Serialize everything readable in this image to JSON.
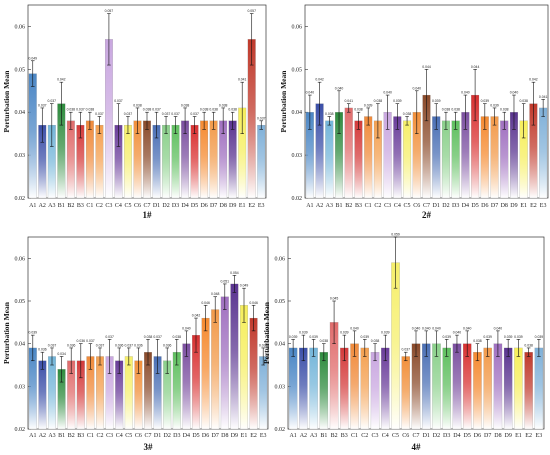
{
  "chart_data": [
    {
      "type": "bar",
      "title": "1#",
      "ylabel": "Perturbation Mean",
      "ylim": [
        0.02,
        0.065
      ],
      "yticks": [
        "0.02",
        "0.03",
        "0.04",
        "0.05",
        "0.06"
      ],
      "categories": [
        "A1",
        "A2",
        "A3",
        "B1",
        "B2",
        "B3",
        "C1",
        "C2",
        "C3",
        "C4",
        "C5",
        "C6",
        "C7",
        "D1",
        "D2",
        "D3",
        "D4",
        "D5",
        "D6",
        "D7",
        "D8",
        "D9",
        "E1",
        "E2",
        "E3"
      ],
      "values": [
        0.049,
        0.037,
        0.037,
        0.042,
        0.038,
        0.037,
        0.038,
        0.037,
        0.057,
        0.037,
        0.037,
        0.038,
        0.038,
        0.037,
        0.037,
        0.037,
        0.038,
        0.037,
        0.038,
        0.038,
        0.038,
        0.038,
        0.041,
        0.057,
        0.037
      ],
      "errors": [
        0.003,
        0.004,
        0.005,
        0.005,
        0.002,
        0.003,
        0.002,
        0.002,
        0.006,
        0.005,
        0.002,
        0.003,
        0.002,
        0.003,
        0.002,
        0.002,
        0.003,
        0.002,
        0.002,
        0.002,
        0.003,
        0.002,
        0.006,
        0.006,
        0.001
      ],
      "value_labels": [
        "0.049",
        "0.037",
        "0.037",
        "0.042",
        "0.038",
        "0.037",
        "0.038",
        "0.037",
        "0.057",
        "0.037",
        "0.037",
        "0.038",
        "0.038",
        "0.037",
        "0.037",
        "0.037",
        "0.038",
        "0.037",
        "0.038",
        "0.038",
        "0.038",
        "0.038",
        "0.041",
        "0.057",
        "0.037"
      ]
    },
    {
      "type": "bar",
      "title": "2#",
      "ylabel": "Perturbation Mean",
      "ylim": [
        0.02,
        0.065
      ],
      "yticks": [
        "0.02",
        "0.03",
        "0.04",
        "0.05",
        "0.06"
      ],
      "categories": [
        "A1",
        "A2",
        "A3",
        "B1",
        "B2",
        "B3",
        "C1",
        "C2",
        "C3",
        "C4",
        "C5",
        "C6",
        "C7",
        "D1",
        "D2",
        "D3",
        "D4",
        "D5",
        "D6",
        "D7",
        "D8",
        "D9",
        "E1",
        "E2",
        "E3"
      ],
      "values": [
        0.04,
        0.042,
        0.038,
        0.04,
        0.041,
        0.038,
        0.039,
        0.038,
        0.04,
        0.039,
        0.038,
        0.04,
        0.044,
        0.039,
        0.038,
        0.038,
        0.04,
        0.044,
        0.039,
        0.039,
        0.038,
        0.04,
        0.038,
        0.042,
        0.041
      ],
      "errors": [
        0.004,
        0.005,
        0.001,
        0.005,
        0.001,
        0.002,
        0.002,
        0.004,
        0.004,
        0.003,
        0.001,
        0.005,
        0.006,
        0.003,
        0.002,
        0.002,
        0.004,
        0.006,
        0.003,
        0.002,
        0.002,
        0.004,
        0.004,
        0.005,
        0.002
      ],
      "value_labels": [
        "0.040",
        "0.042",
        "0.038",
        "0.040",
        "0.041",
        "0.038",
        "0.039",
        "0.038",
        "0.040",
        "0.039",
        "0.038",
        "0.040",
        "0.044",
        "0.039",
        "0.038",
        "0.038",
        "0.040",
        "0.044",
        "0.039",
        "0.039",
        "0.038",
        "0.040",
        "0.038",
        "0.042",
        "0.041"
      ]
    },
    {
      "type": "bar",
      "title": "3#",
      "ylabel": "Perturbation Mean",
      "ylim": [
        0.02,
        0.065
      ],
      "yticks": [
        "0.02",
        "0.03",
        "0.04",
        "0.05",
        "0.06"
      ],
      "categories": [
        "A1",
        "A2",
        "A3",
        "B1",
        "B2",
        "B3",
        "C1",
        "C2",
        "C3",
        "C4",
        "C5",
        "C6",
        "C7",
        "D1",
        "D2",
        "D3",
        "D4",
        "D5",
        "D6",
        "D7",
        "D8",
        "D9",
        "E1",
        "E2",
        "E3"
      ],
      "values": [
        0.039,
        0.036,
        0.037,
        0.034,
        0.036,
        0.036,
        0.037,
        0.037,
        0.037,
        0.036,
        0.037,
        0.036,
        0.038,
        0.037,
        0.036,
        0.038,
        0.04,
        0.042,
        0.046,
        0.048,
        0.051,
        0.054,
        0.049,
        0.046,
        0.037
      ],
      "errors": [
        0.003,
        0.002,
        0.002,
        0.003,
        0.003,
        0.004,
        0.003,
        0.002,
        0.004,
        0.003,
        0.002,
        0.003,
        0.003,
        0.004,
        0.003,
        0.003,
        0.003,
        0.004,
        0.003,
        0.003,
        0.003,
        0.002,
        0.004,
        0.003,
        0.002
      ],
      "value_labels": [
        "0.039",
        "0.036",
        "0.037",
        "0.034",
        "0.036",
        "0.036",
        "0.037",
        "0.037",
        "0.037",
        "0.036",
        "0.037",
        "0.036",
        "0.038",
        "0.037",
        "0.036",
        "0.038",
        "0.040",
        "0.042",
        "0.046",
        "0.048",
        "0.051",
        "0.054",
        "0.049",
        "0.046",
        "0.037"
      ]
    },
    {
      "type": "bar",
      "title": "4#",
      "ylabel": "Perturbation Mean",
      "ylim": [
        0.02,
        0.065
      ],
      "yticks": [
        "0.02",
        "0.03",
        "0.04",
        "0.05",
        "0.06"
      ],
      "categories": [
        "A1",
        "A2",
        "A3",
        "B1",
        "B2",
        "B3",
        "C1",
        "C2",
        "C3",
        "C4",
        "C5",
        "C6",
        "C7",
        "D1",
        "D2",
        "D3",
        "D4",
        "D5",
        "D6",
        "D7",
        "D8",
        "D9",
        "E1",
        "E2",
        "E3"
      ],
      "values": [
        0.039,
        0.039,
        0.039,
        0.038,
        0.045,
        0.039,
        0.04,
        0.039,
        0.038,
        0.039,
        0.059,
        0.037,
        0.04,
        0.04,
        0.04,
        0.039,
        0.04,
        0.04,
        0.038,
        0.039,
        0.04,
        0.039,
        0.039,
        0.038,
        0.039
      ],
      "errors": [
        0.002,
        0.003,
        0.002,
        0.002,
        0.005,
        0.003,
        0.003,
        0.002,
        0.002,
        0.003,
        0.006,
        0.001,
        0.003,
        0.003,
        0.003,
        0.002,
        0.002,
        0.003,
        0.002,
        0.002,
        0.003,
        0.002,
        0.002,
        0.001,
        0.002
      ],
      "value_labels": [
        "0.039",
        "0.039",
        "0.039",
        "0.038",
        "0.045",
        "0.039",
        "0.040",
        "0.039",
        "0.038",
        "0.039",
        "0.059",
        "0.037",
        "0.040",
        "0.040",
        "0.040",
        "0.039",
        "0.040",
        "0.040",
        "0.038",
        "0.039",
        "0.040",
        "0.039",
        "0.039",
        "0.038",
        "0.039"
      ]
    }
  ],
  "colors": [
    "#4a86c5",
    "#3b4fa8",
    "#73b5d9",
    "#2e8b3e",
    "#e06b6b",
    "#d43a3a",
    "#f08a3a",
    "#f4a050",
    "#c9a7e0",
    "#6a3d9a",
    "#f6ef6a",
    "#f18f3a",
    "#8a4a2a",
    "#4a6fb5",
    "#8ad08a",
    "#5fbf5f",
    "#7b4fa0",
    "#d93030",
    "#f58a30",
    "#f29a4a",
    "#a070c0",
    "#5a3490",
    "#f6ee5a",
    "#c0392b",
    "#7fb0d8"
  ]
}
